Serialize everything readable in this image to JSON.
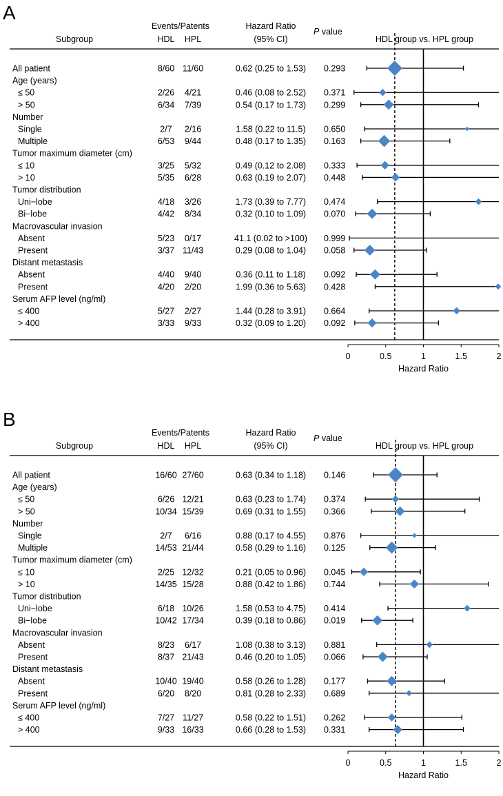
{
  "figure_type": "forest plot",
  "chart_data": [
    {
      "type": "forest",
      "panel_label": "A",
      "headers": {
        "subgroup": "Subgroup",
        "events": "Events/Patents",
        "hdl": "HDL",
        "hpl": "HPL",
        "hr_line1": "Hazard Ratio",
        "hr_line2": "(95% CI)",
        "p_italic": "P",
        "p_rest": " value",
        "comparison": "HDL group vs. HPL group"
      },
      "xlabel": "Hazard Ratio",
      "xlim": [
        0,
        2
      ],
      "xticks": [
        "0",
        "0.5",
        "1",
        "1.5",
        "2"
      ],
      "reference_line": 1,
      "overall_line": 0.62,
      "rows": [
        {
          "label": "All patient",
          "indent": false,
          "hdl": "8/60",
          "hpl": "11/60",
          "hr_text": "0.62 (0.25 to 1.53)",
          "p": "0.293",
          "hr": 0.62,
          "lo": 0.25,
          "hi": 1.53,
          "weight": 1.0
        },
        {
          "label": "Age (years)",
          "indent": false,
          "header": true
        },
        {
          "label": "≤ 50",
          "indent": true,
          "hdl": "2/26",
          "hpl": "4/21",
          "hr_text": "0.46 (0.08 to 2.52)",
          "p": "0.371",
          "hr": 0.46,
          "lo": 0.08,
          "hi": 2.52,
          "weight": 0.35
        },
        {
          "label": "> 50",
          "indent": true,
          "hdl": "6/34",
          "hpl": "7/39",
          "hr_text": "0.54 (0.17 to 1.73)",
          "p": "0.299",
          "hr": 0.54,
          "lo": 0.17,
          "hi": 1.73,
          "weight": 0.6
        },
        {
          "label": "Number",
          "indent": false,
          "header": true
        },
        {
          "label": "Single",
          "indent": true,
          "hdl": "2/7",
          "hpl": "2/16",
          "hr_text": "1.58 (0.22 to 11.5)",
          "p": "0.650",
          "hr": 1.58,
          "lo": 0.22,
          "hi": 11.5,
          "weight": 0.12
        },
        {
          "label": "Multiple",
          "indent": true,
          "hdl": "6/53",
          "hpl": "9/44",
          "hr_text": "0.48 (0.17 to 1.35)",
          "p": "0.163",
          "hr": 0.48,
          "lo": 0.17,
          "hi": 1.35,
          "weight": 0.75
        },
        {
          "label": "Tumor maximum diameter (cm)",
          "indent": false,
          "header": true
        },
        {
          "label": "≤ 10",
          "indent": true,
          "hdl": "3/25",
          "hpl": "5/32",
          "hr_text": "0.49 (0.12 to 2.08)",
          "p": "0.333",
          "hr": 0.49,
          "lo": 0.12,
          "hi": 2.08,
          "weight": 0.45
        },
        {
          "label": "> 10",
          "indent": true,
          "hdl": "5/35",
          "hpl": "6/28",
          "hr_text": "0.63 (0.19 to 2.07)",
          "p": "0.448",
          "hr": 0.63,
          "lo": 0.19,
          "hi": 2.07,
          "weight": 0.45
        },
        {
          "label": "Tumor distribution",
          "indent": false,
          "header": true
        },
        {
          "label": "Uni−lobe",
          "indent": true,
          "hdl": "4/18",
          "hpl": "3/26",
          "hr_text": "1.73 (0.39 to 7.77)",
          "p": "0.474",
          "hr": 1.73,
          "lo": 0.39,
          "hi": 7.77,
          "weight": 0.3
        },
        {
          "label": "Bi−lobe",
          "indent": true,
          "hdl": "4/42",
          "hpl": "8/34",
          "hr_text": "0.32 (0.10 to 1.09)",
          "p": "0.070",
          "hr": 0.32,
          "lo": 0.1,
          "hi": 1.09,
          "weight": 0.6
        },
        {
          "label": "Macrovascular invasion",
          "indent": false,
          "header": true
        },
        {
          "label": "Absent",
          "indent": true,
          "hdl": "5/23",
          "hpl": "0/17",
          "hr_text": "41.1 (0.02 to >100)",
          "p": "0.999",
          "hr": 41.1,
          "lo": 0.02,
          "hi": 100,
          "weight": 0.0
        },
        {
          "label": "Present",
          "indent": true,
          "hdl": "3/37",
          "hpl": "11/43",
          "hr_text": "0.29 (0.08 to 1.04)",
          "p": "0.058",
          "hr": 0.29,
          "lo": 0.08,
          "hi": 1.04,
          "weight": 0.65
        },
        {
          "label": "Distant metastasis",
          "indent": false,
          "header": true
        },
        {
          "label": "Absent",
          "indent": true,
          "hdl": "4/40",
          "hpl": "9/40",
          "hr_text": "0.36 (0.11 to 1.18)",
          "p": "0.092",
          "hr": 0.36,
          "lo": 0.11,
          "hi": 1.18,
          "weight": 0.6
        },
        {
          "label": "Present",
          "indent": true,
          "hdl": "4/20",
          "hpl": "2/20",
          "hr_text": "1.99 (0.36 to 5.63)",
          "p": "0.428",
          "hr": 1.99,
          "lo": 0.36,
          "hi": 5.63,
          "weight": 0.25
        },
        {
          "label": "Serum AFP level (ng/ml)",
          "indent": false,
          "header": true
        },
        {
          "label": "≤ 400",
          "indent": true,
          "hdl": "5/27",
          "hpl": "2/27",
          "hr_text": "1.44 (0.28 to 3.91)",
          "p": "0.664",
          "hr": 1.44,
          "lo": 0.28,
          "hi": 3.91,
          "weight": 0.35
        },
        {
          "label": "> 400",
          "indent": true,
          "hdl": "3/33",
          "hpl": "9/33",
          "hr_text": "0.32 (0.09 to 1.20)",
          "p": "0.092",
          "hr": 0.32,
          "lo": 0.09,
          "hi": 1.2,
          "weight": 0.5
        }
      ]
    },
    {
      "type": "forest",
      "panel_label": "B",
      "headers": {
        "subgroup": "Subgroup",
        "events": "Events/Patents",
        "hdl": "HDL",
        "hpl": "HPL",
        "hr_line1": "Hazard Ratio",
        "hr_line2": "(95% CI)",
        "p_italic": "P",
        "p_rest": " value",
        "comparison": "HDL group vs. HPL group"
      },
      "xlabel": "Hazard Ratio",
      "xlim": [
        0,
        2
      ],
      "xticks": [
        "0",
        "0.5",
        "1",
        "1.5",
        "2"
      ],
      "reference_line": 1,
      "overall_line": 0.63,
      "rows": [
        {
          "label": "All patient",
          "indent": false,
          "hdl": "16/60",
          "hpl": "27/60",
          "hr_text": "0.63 (0.34 to 1.18)",
          "p": "0.146",
          "hr": 0.63,
          "lo": 0.34,
          "hi": 1.18,
          "weight": 1.0
        },
        {
          "label": "Age (years)",
          "indent": false,
          "header": true
        },
        {
          "label": "≤ 50",
          "indent": true,
          "hdl": "6/26",
          "hpl": "12/21",
          "hr_text": "0.63 (0.23 to 1.74)",
          "p": "0.374",
          "hr": 0.63,
          "lo": 0.23,
          "hi": 1.74,
          "weight": 0.35
        },
        {
          "label": "> 50",
          "indent": true,
          "hdl": "10/34",
          "hpl": "15/39",
          "hr_text": "0.69 (0.31 to 1.55)",
          "p": "0.366",
          "hr": 0.69,
          "lo": 0.31,
          "hi": 1.55,
          "weight": 0.55
        },
        {
          "label": "Number",
          "indent": false,
          "header": true
        },
        {
          "label": "Single",
          "indent": true,
          "hdl": "2/7",
          "hpl": "6/16",
          "hr_text": "0.88 (0.17 to 4.55)",
          "p": "0.876",
          "hr": 0.88,
          "lo": 0.17,
          "hi": 4.55,
          "weight": 0.15
        },
        {
          "label": "Multiple",
          "indent": true,
          "hdl": "14/53",
          "hpl": "21/44",
          "hr_text": "0.58 (0.29 to 1.16)",
          "p": "0.125",
          "hr": 0.58,
          "lo": 0.29,
          "hi": 1.16,
          "weight": 0.75
        },
        {
          "label": "Tumor maximum diameter (cm)",
          "indent": false,
          "header": true
        },
        {
          "label": "≤ 10",
          "indent": true,
          "hdl": "2/25",
          "hpl": "12/32",
          "hr_text": "0.21 (0.05 to 0.96)",
          "p": "0.045",
          "hr": 0.21,
          "lo": 0.05,
          "hi": 0.96,
          "weight": 0.45
        },
        {
          "label": "> 10",
          "indent": true,
          "hdl": "14/35",
          "hpl": "15/28",
          "hr_text": "0.88 (0.42 to 1.86)",
          "p": "0.744",
          "hr": 0.88,
          "lo": 0.42,
          "hi": 1.86,
          "weight": 0.5
        },
        {
          "label": "Tumor distribution",
          "indent": false,
          "header": true
        },
        {
          "label": "Uni−lobe",
          "indent": true,
          "hdl": "6/18",
          "hpl": "10/26",
          "hr_text": "1.58 (0.53 to 4.75)",
          "p": "0.414",
          "hr": 1.58,
          "lo": 0.53,
          "hi": 4.75,
          "weight": 0.3
        },
        {
          "label": "Bi−lobe",
          "indent": true,
          "hdl": "10/42",
          "hpl": "17/34",
          "hr_text": "0.39 (0.18 to 0.86)",
          "p": "0.019",
          "hr": 0.39,
          "lo": 0.18,
          "hi": 0.86,
          "weight": 0.6
        },
        {
          "label": "Macrovascular invasion",
          "indent": false,
          "header": true
        },
        {
          "label": "Absent",
          "indent": true,
          "hdl": "8/23",
          "hpl": "6/17",
          "hr_text": "1.08 (0.38 to 3.13)",
          "p": "0.881",
          "hr": 1.08,
          "lo": 0.38,
          "hi": 3.13,
          "weight": 0.3
        },
        {
          "label": "Present",
          "indent": true,
          "hdl": "8/37",
          "hpl": "21/43",
          "hr_text": "0.46 (0.20 to 1.05)",
          "p": "0.066",
          "hr": 0.46,
          "lo": 0.2,
          "hi": 1.05,
          "weight": 0.6
        },
        {
          "label": "Distant metastasis",
          "indent": false,
          "header": true
        },
        {
          "label": "Absent",
          "indent": true,
          "hdl": "10/40",
          "hpl": "19/40",
          "hr_text": "0.58 (0.26 to 1.28)",
          "p": "0.177",
          "hr": 0.58,
          "lo": 0.26,
          "hi": 1.28,
          "weight": 0.6
        },
        {
          "label": "Present",
          "indent": true,
          "hdl": "6/20",
          "hpl": "8/20",
          "hr_text": "0.81 (0.28 to 2.33)",
          "p": "0.689",
          "hr": 0.81,
          "lo": 0.28,
          "hi": 2.33,
          "weight": 0.25
        },
        {
          "label": "Serum AFP level (ng/ml)",
          "indent": false,
          "header": true
        },
        {
          "label": "≤ 400",
          "indent": true,
          "hdl": "7/27",
          "hpl": "11/27",
          "hr_text": "0.58 (0.22 to 1.51)",
          "p": "0.262",
          "hr": 0.58,
          "lo": 0.22,
          "hi": 1.51,
          "weight": 0.4
        },
        {
          "label": "> 400",
          "indent": true,
          "hdl": "9/33",
          "hpl": "16/33",
          "hr_text": "0.66 (0.28 to 1.53)",
          "p": "0.331",
          "hr": 0.66,
          "lo": 0.28,
          "hi": 1.53,
          "weight": 0.5
        }
      ]
    }
  ],
  "colors": {
    "marker": "#4a86c5",
    "line": "#000000"
  }
}
